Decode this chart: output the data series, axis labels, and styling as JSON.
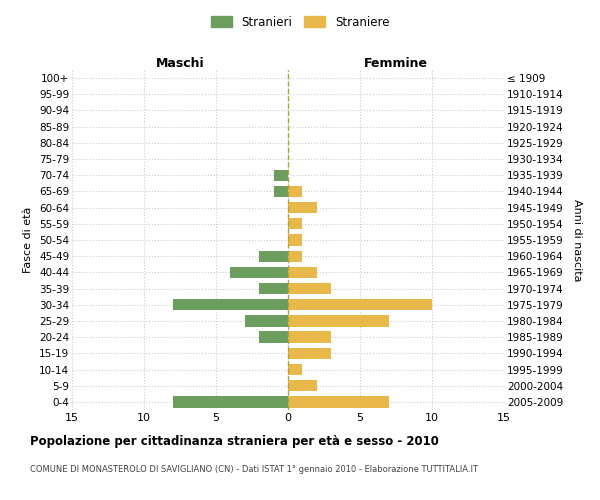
{
  "age_groups": [
    "100+",
    "95-99",
    "90-94",
    "85-89",
    "80-84",
    "75-79",
    "70-74",
    "65-69",
    "60-64",
    "55-59",
    "50-54",
    "45-49",
    "40-44",
    "35-39",
    "30-34",
    "25-29",
    "20-24",
    "15-19",
    "10-14",
    "5-9",
    "0-4"
  ],
  "birth_years": [
    "≤ 1909",
    "1910-1914",
    "1915-1919",
    "1920-1924",
    "1925-1929",
    "1930-1934",
    "1935-1939",
    "1940-1944",
    "1945-1949",
    "1950-1954",
    "1955-1959",
    "1960-1964",
    "1965-1969",
    "1970-1974",
    "1975-1979",
    "1980-1984",
    "1985-1989",
    "1990-1994",
    "1995-1999",
    "2000-2004",
    "2005-2009"
  ],
  "maschi": [
    0,
    0,
    0,
    0,
    0,
    0,
    1,
    1,
    0,
    0,
    0,
    2,
    4,
    2,
    8,
    3,
    2,
    0,
    0,
    0,
    8
  ],
  "femmine": [
    0,
    0,
    0,
    0,
    0,
    0,
    0,
    1,
    2,
    1,
    1,
    1,
    2,
    3,
    10,
    7,
    3,
    3,
    1,
    2,
    7
  ],
  "maschi_color": "#6b9e5e",
  "femmine_color": "#e8b84b",
  "title": "Popolazione per cittadinanza straniera per età e sesso - 2010",
  "subtitle": "COMUNE DI MONASTEROLO DI SAVIGLIANO (CN) - Dati ISTAT 1° gennaio 2010 - Elaborazione TUTTITALIA.IT",
  "xlabel_left": "Maschi",
  "xlabel_right": "Femmine",
  "ylabel_left": "Fasce di età",
  "ylabel_right": "Anni di nascita",
  "legend_maschi": "Stranieri",
  "legend_femmine": "Straniere",
  "xlim": 15,
  "background_color": "#ffffff",
  "grid_color": "#cccccc",
  "center_line_color": "#aaa830"
}
